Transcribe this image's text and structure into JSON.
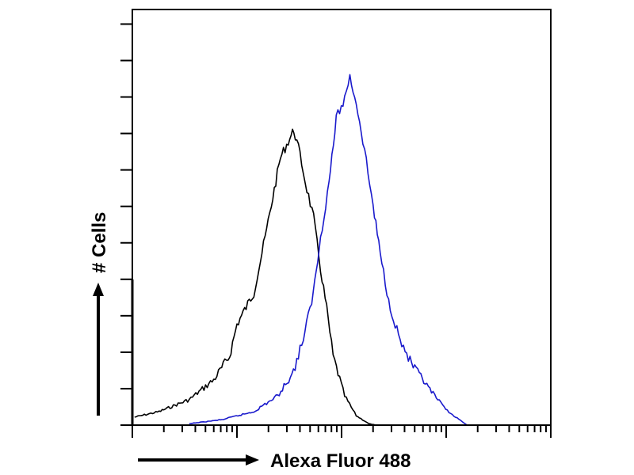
{
  "chart_data": {
    "type": "line",
    "title": "",
    "xlabel": "Alexa Fluor 488",
    "ylabel": "# Cells",
    "x_scale": "log",
    "xlim": [
      1,
      10000
    ],
    "ylim": [
      0,
      114
    ],
    "y_tick_step": 10,
    "tick_labels_shown": false,
    "grid": false,
    "legend": "none",
    "series": [
      {
        "color": "#000000",
        "x": [
          1.05,
          1.8,
          3.5,
          6,
          8.5,
          10,
          14.5,
          18.6,
          22,
          26,
          32,
          35,
          40,
          45,
          54,
          63,
          72,
          83,
          107,
          138,
          182,
          214
        ],
        "y": [
          2.2,
          3.7,
          7,
          12.4,
          18.9,
          27.6,
          36.3,
          51.5,
          62.4,
          73.3,
          78.7,
          80.9,
          74.3,
          66.7,
          56.9,
          42.8,
          32,
          18.9,
          8,
          2.6,
          0.4,
          0
        ]
      },
      {
        "color": "#1a1acc",
        "x": [
          3.5,
          7.2,
          14.5,
          24.5,
          34.7,
          44.7,
          53.7,
          63,
          75.9,
          89,
          107,
          120,
          138,
          166,
          200,
          234,
          282,
          363,
          468,
          676,
          955,
          1230,
          1585
        ],
        "y": [
          0.4,
          1.5,
          3.7,
          8,
          14.6,
          25.4,
          36.3,
          51.5,
          66.7,
          84.1,
          89.5,
          95.7,
          88.5,
          75.4,
          60.2,
          47.2,
          34.1,
          23.2,
          16.7,
          10.2,
          4.8,
          2.2,
          0
        ]
      }
    ]
  }
}
